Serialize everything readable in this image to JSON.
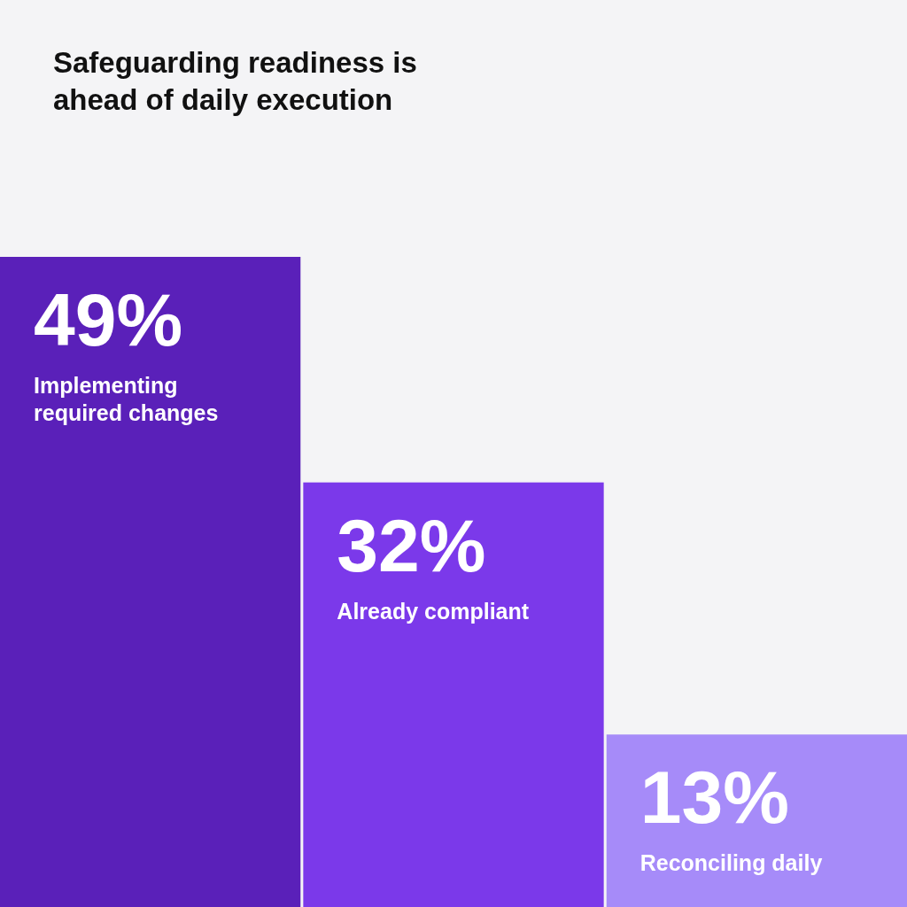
{
  "chart_data": {
    "type": "bar",
    "title": "Safeguarding readiness is ahead of daily execution",
    "categories": [
      "Implementing required changes",
      "Already compliant",
      "Reconciling daily"
    ],
    "values": [
      49,
      32,
      13
    ],
    "value_labels": [
      "49%",
      "32%",
      "13%"
    ],
    "colors": [
      "#5a20b9",
      "#7b39ea",
      "#a68bf9"
    ]
  }
}
